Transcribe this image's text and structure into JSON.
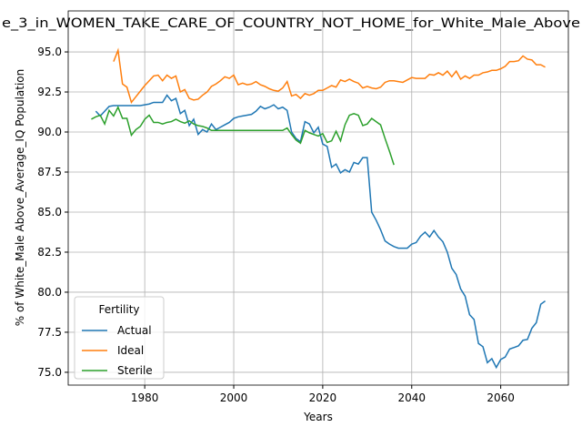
{
  "chart_data": {
    "type": "line",
    "title": "e_3_in_WOMEN_TAKE_CARE_OF_COUNTRY_NOT_HOME_for_White_Male_Above",
    "xlabel": "Years",
    "ylabel": "% of White_Male Above_Average_IQ Population",
    "x": [
      1968,
      1969,
      1970,
      1971,
      1972,
      1973,
      1974,
      1975,
      1976,
      1977,
      1978,
      1979,
      1980,
      1981,
      1982,
      1983,
      1984,
      1985,
      1986,
      1987,
      1988,
      1989,
      1990,
      1991,
      1992,
      1993,
      1994,
      1995,
      1996,
      1997,
      1998,
      1999,
      2000,
      2001,
      2002,
      2003,
      2004,
      2005,
      2006,
      2007,
      2008,
      2009,
      2010,
      2011,
      2012,
      2013,
      2014,
      2015,
      2016,
      2017,
      2018,
      2019,
      2020,
      2021,
      2022,
      2023,
      2024,
      2025,
      2026,
      2027,
      2028,
      2029,
      2030,
      2031,
      2032,
      2033,
      2034,
      2035,
      2036,
      2037,
      2038,
      2039,
      2040,
      2041,
      2042,
      2043,
      2044,
      2045,
      2046,
      2047,
      2048,
      2049,
      2050,
      2051,
      2052,
      2053,
      2054,
      2055,
      2056,
      2057,
      2058,
      2059,
      2060,
      2061,
      2062,
      2063,
      2064,
      2065,
      2066,
      2067,
      2068,
      2069,
      2070
    ],
    "series": [
      {
        "name": "Actual",
        "color": "#1f77b4",
        "values": [
          null,
          91.3,
          91.0,
          91.3,
          91.6,
          91.65,
          91.65,
          91.65,
          91.65,
          91.65,
          91.65,
          91.65,
          91.7,
          91.75,
          91.85,
          91.85,
          91.85,
          92.3,
          91.95,
          92.1,
          91.15,
          91.35,
          90.4,
          90.8,
          89.85,
          90.15,
          90.0,
          90.5,
          90.15,
          90.3,
          90.45,
          90.6,
          90.85,
          90.95,
          91.0,
          91.05,
          91.1,
          91.3,
          91.6,
          91.45,
          91.55,
          91.7,
          91.45,
          91.55,
          91.35,
          90.0,
          89.6,
          89.4,
          90.65,
          90.5,
          89.95,
          90.3,
          89.25,
          89.1,
          87.8,
          88.0,
          87.45,
          87.65,
          87.5,
          88.1,
          88.0,
          88.4,
          88.4,
          85.0,
          84.5,
          83.9,
          83.2,
          83.0,
          82.85,
          82.75,
          82.75,
          82.75,
          83.0,
          83.1,
          83.5,
          83.75,
          83.45,
          83.85,
          83.45,
          83.15,
          82.5,
          81.5,
          81.1,
          80.2,
          79.75,
          78.6,
          78.3,
          76.8,
          76.6,
          75.6,
          75.85,
          75.3,
          75.8,
          75.95,
          76.45,
          76.55,
          76.65,
          77.0,
          77.05,
          77.75,
          78.1,
          79.25,
          79.45
        ]
      },
      {
        "name": "Ideal",
        "color": "#ff7f0e",
        "values": [
          null,
          null,
          null,
          null,
          null,
          94.4,
          95.1,
          93.0,
          92.8,
          91.85,
          92.2,
          92.55,
          92.9,
          93.2,
          93.5,
          93.55,
          93.2,
          93.55,
          93.35,
          93.5,
          92.5,
          92.65,
          92.1,
          92.0,
          92.05,
          92.3,
          92.5,
          92.85,
          93.0,
          93.2,
          93.45,
          93.35,
          93.55,
          92.95,
          93.05,
          92.95,
          93.0,
          93.15,
          92.95,
          92.85,
          92.7,
          92.6,
          92.55,
          92.75,
          93.15,
          92.25,
          92.35,
          92.1,
          92.4,
          92.3,
          92.4,
          92.6,
          92.6,
          92.75,
          92.9,
          92.8,
          93.25,
          93.15,
          93.3,
          93.15,
          93.05,
          92.75,
          92.85,
          92.75,
          92.7,
          92.8,
          93.1,
          93.2,
          93.2,
          93.15,
          93.1,
          93.25,
          93.4,
          93.35,
          93.35,
          93.35,
          93.6,
          93.55,
          93.7,
          93.55,
          93.8,
          93.45,
          93.8,
          93.3,
          93.5,
          93.35,
          93.55,
          93.55,
          93.7,
          93.75,
          93.85,
          93.85,
          93.95,
          94.1,
          94.4,
          94.4,
          94.45,
          94.75,
          94.55,
          94.5,
          94.2,
          94.2,
          94.05
        ]
      },
      {
        "name": "Sterile",
        "color": "#2ca02c",
        "values": [
          90.8,
          90.95,
          91.05,
          90.5,
          91.35,
          91.0,
          91.55,
          90.85,
          90.85,
          89.8,
          90.15,
          90.35,
          90.8,
          91.05,
          90.6,
          90.6,
          90.5,
          90.6,
          90.65,
          90.8,
          90.65,
          90.55,
          90.7,
          90.5,
          90.4,
          90.35,
          90.25,
          90.1,
          90.1,
          90.1,
          90.1,
          90.1,
          90.1,
          90.1,
          90.1,
          90.1,
          90.1,
          90.1,
          90.1,
          90.1,
          90.1,
          90.1,
          90.1,
          90.1,
          90.25,
          89.85,
          89.5,
          89.3,
          90.1,
          89.95,
          89.85,
          89.75,
          89.9,
          89.35,
          89.45,
          90.05,
          89.45,
          90.45,
          91.05,
          91.15,
          91.05,
          90.4,
          90.5,
          90.85,
          90.65,
          90.45,
          89.6,
          88.8,
          87.95,
          null,
          null,
          null,
          null,
          null,
          null,
          null,
          null,
          null,
          null,
          null,
          null,
          null,
          null,
          null,
          null,
          null,
          null,
          null,
          null,
          null,
          null,
          null,
          null,
          null,
          null,
          null,
          null,
          null,
          null,
          null,
          null,
          null,
          null
        ]
      }
    ],
    "xlim": [
      1962.8,
      2075.2
    ],
    "xticks": [
      1980,
      2000,
      2020,
      2040,
      2060
    ],
    "ylim": [
      74.2,
      97.56
    ],
    "yticks": [
      {
        "value": 75,
        "label": "75.0"
      },
      {
        "value": 77.5,
        "label": "77.5"
      },
      {
        "value": 80,
        "label": "80.0"
      },
      {
        "value": 82.5,
        "label": "82.5"
      },
      {
        "value": 85,
        "label": "85.0"
      },
      {
        "value": 87.5,
        "label": "87.5"
      },
      {
        "value": 90,
        "label": "90.0"
      },
      {
        "value": 92.5,
        "label": "92.5"
      },
      {
        "value": 95,
        "label": "95.0"
      }
    ],
    "grid": true,
    "legend": {
      "title": "Fertility",
      "loc": "lower left"
    }
  }
}
